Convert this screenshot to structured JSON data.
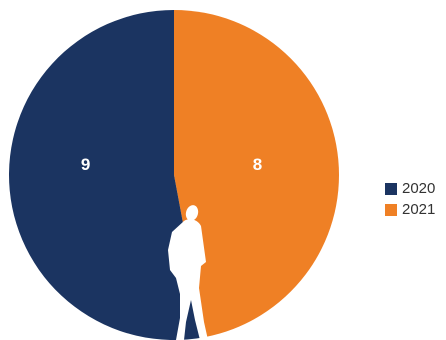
{
  "chart_data": {
    "type": "pie",
    "slices": [
      {
        "label": "2020",
        "value": 9,
        "color": "#1b3461"
      },
      {
        "label": "2021",
        "value": 8,
        "color": "#ef8025"
      }
    ],
    "title": "",
    "data_labels": true,
    "legend": {
      "placement": "right",
      "entries": [
        "2020",
        "2021"
      ]
    }
  },
  "overlay": {
    "icon": "walking-person-silhouette-icon"
  }
}
